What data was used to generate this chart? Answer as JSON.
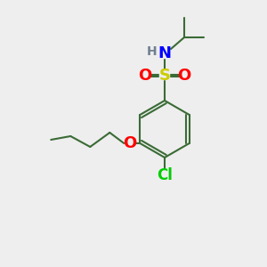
{
  "bg_color": "#eeeeee",
  "bond_color": "#3a6b35",
  "atom_colors": {
    "N": "#0000ff",
    "H": "#708090",
    "S": "#cccc00",
    "O": "#ff0000",
    "Cl": "#00cc00",
    "O2": "#ff0000"
  },
  "bond_width": 1.5,
  "font_size": 11
}
